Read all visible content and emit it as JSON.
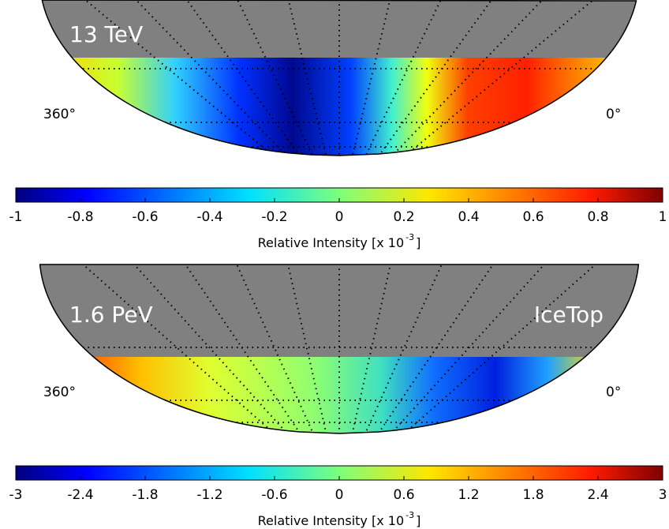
{
  "chart_data": [
    {
      "type": "skymap",
      "title": "13 TeV",
      "left_label": "360°",
      "right_label": "0°",
      "colorbar": {
        "xlim": [
          -1,
          1
        ],
        "xticks": [
          -1,
          -0.8,
          -0.6,
          -0.4,
          -0.2,
          0,
          0.2,
          0.4,
          0.6,
          0.8,
          1
        ],
        "xlabel": "Relative Intensity [x 10",
        "xlabel_sup": "-3",
        "xlabel_end": "]"
      }
    },
    {
      "type": "skymap",
      "title": "1.6 PeV",
      "annotation": "IceTop",
      "left_label": "360°",
      "right_label": "0°",
      "colorbar": {
        "xlim": [
          -3,
          3
        ],
        "xticks": [
          -3,
          -2.4,
          -1.8,
          -1.2,
          -0.6,
          0,
          0.6,
          1.2,
          1.8,
          2.4,
          3
        ],
        "xlabel": "Relative Intensity [x 10",
        "xlabel_sup": "-3",
        "xlabel_end": "]"
      }
    }
  ]
}
